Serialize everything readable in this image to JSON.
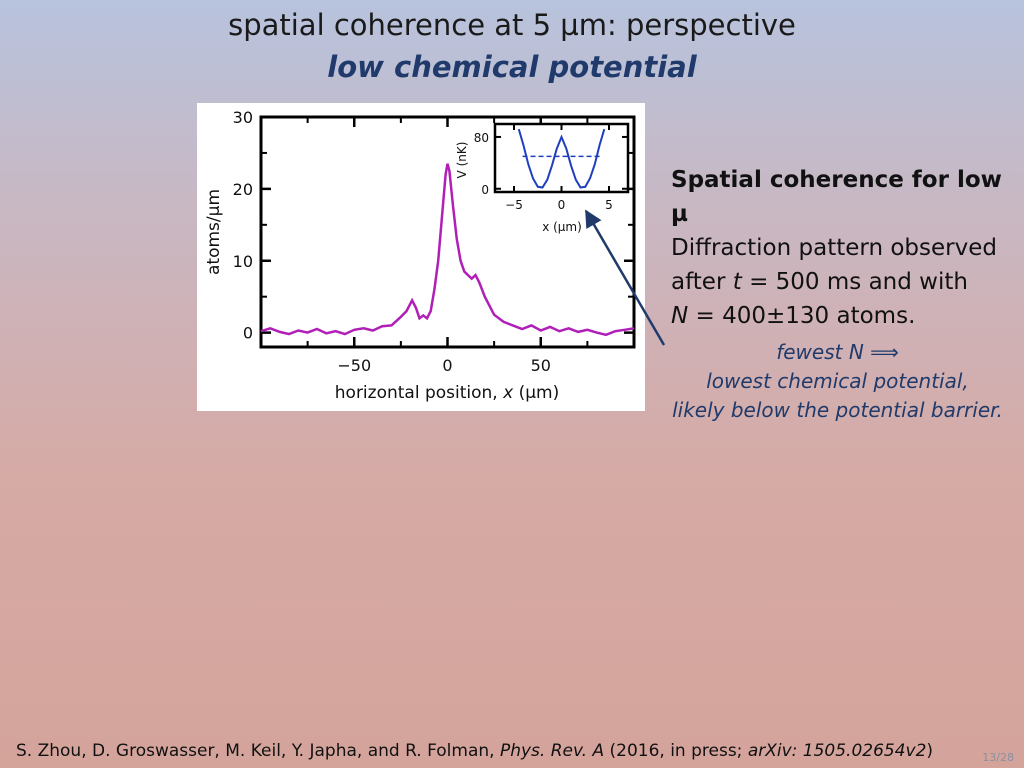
{
  "slide": {
    "title_line1": "spatial coherence at 5 µm: perspective",
    "title_line2": "low chemical potential",
    "slide_number": "13/28"
  },
  "description": {
    "heading": "Spatial coherence for low µ",
    "line1": "Diffraction pattern observed",
    "line2_pre": "after ",
    "line2_var": "t",
    "line2_post": " = 500 ms and with",
    "line3_var": "N",
    "line3_post": " = 400±130 atoms."
  },
  "note": {
    "line1": "fewest N ⟹",
    "line2": "lowest chemical potential,",
    "line3": "likely below the potential barrier."
  },
  "citation": {
    "authors": "S. Zhou, D. Groswasser, M. Keil, Y. Japha, and R. Folman, ",
    "journal": "Phys. Rev. A",
    "middle": " (2016, in press; ",
    "arxiv": "arXiv: 1505.02654v2",
    "end": ")"
  },
  "colors": {
    "trace": "#b020b8",
    "inset_curve": "#1f3fc0",
    "arrow": "#1f3a6b"
  },
  "chart_data": [
    {
      "type": "line",
      "xlabel_pre": "horizontal position, ",
      "xlabel_var": "x",
      "xlabel_post": " (µm)",
      "ylabel": "atoms/µm",
      "xlim": [
        -100,
        100
      ],
      "ylim": [
        -2,
        30
      ],
      "xticks": [
        -50,
        0,
        50
      ],
      "xtick_labels": [
        "−50",
        "0",
        "50"
      ],
      "yticks": [
        0,
        10,
        20,
        30
      ],
      "ytick_labels": [
        "0",
        "10",
        "20",
        "30"
      ],
      "grid": false,
      "series": [
        {
          "x": [
            -100,
            -95,
            -90,
            -85,
            -80,
            -75,
            -70,
            -65,
            -60,
            -55,
            -50,
            -45,
            -40,
            -35,
            -30,
            -25,
            -22,
            -19,
            -17,
            -15,
            -13,
            -11,
            -9,
            -7,
            -5,
            -3,
            -1,
            0,
            1,
            3,
            5,
            7,
            9,
            11,
            13,
            15,
            17,
            20,
            25,
            30,
            35,
            40,
            45,
            50,
            55,
            60,
            65,
            70,
            75,
            80,
            85,
            90,
            95,
            100
          ],
          "y": [
            0.2,
            0.6,
            0.1,
            -0.2,
            0.3,
            0.0,
            0.5,
            -0.1,
            0.2,
            -0.2,
            0.4,
            0.6,
            0.3,
            0.9,
            1.0,
            2.2,
            3.0,
            4.5,
            3.5,
            2.0,
            2.4,
            2.0,
            3.0,
            6.0,
            10.0,
            16.0,
            22.0,
            23.5,
            22.5,
            17.5,
            13.0,
            10.0,
            8.5,
            8.0,
            7.5,
            8.0,
            7.0,
            5.0,
            2.5,
            1.5,
            1.0,
            0.5,
            1.0,
            0.3,
            0.8,
            0.2,
            0.6,
            0.1,
            0.4,
            0.0,
            -0.3,
            0.2,
            0.4,
            0.6
          ]
        }
      ]
    },
    {
      "type": "line",
      "xlabel": "x (µm)",
      "ylabel": "V (nK)",
      "xlim": [
        -7,
        7
      ],
      "ylim": [
        -5,
        100
      ],
      "xticks": [
        -5,
        0,
        5
      ],
      "xtick_labels": [
        "−5",
        "0",
        "5"
      ],
      "yticks": [
        0,
        80
      ],
      "ytick_labels": [
        "0",
        "80"
      ],
      "series": [
        {
          "x": [
            -4.5,
            -4.0,
            -3.5,
            -3.0,
            -2.5,
            -2.0,
            -1.5,
            -1.0,
            -0.5,
            0.0,
            0.5,
            1.0,
            1.5,
            2.0,
            2.5,
            3.0,
            3.5,
            4.0,
            4.5
          ],
          "y": [
            92,
            67,
            38,
            16,
            3,
            2,
            14,
            36,
            62,
            80,
            62,
            36,
            14,
            2,
            3,
            16,
            38,
            67,
            92
          ]
        }
      ],
      "level_line": 50
    }
  ]
}
